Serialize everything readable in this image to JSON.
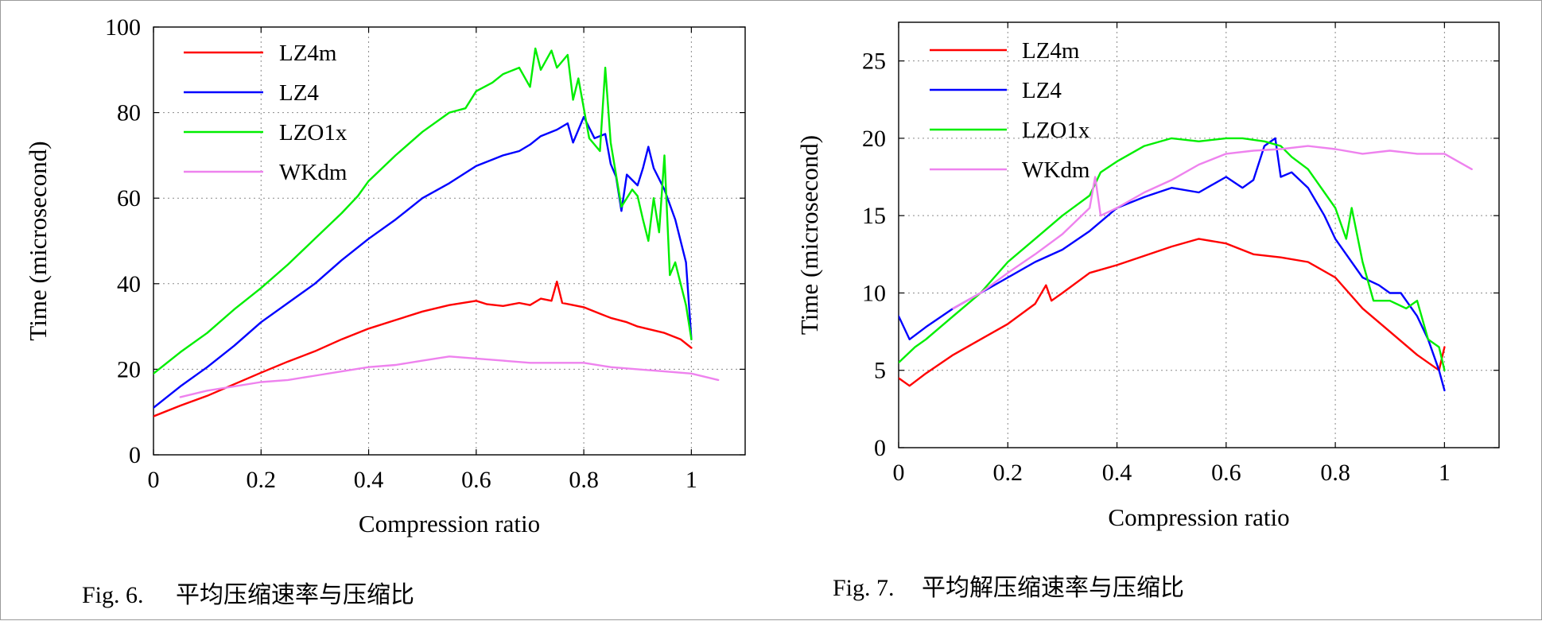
{
  "chart_data": [
    {
      "type": "line",
      "caption_num": "Fig. 6.",
      "caption_text": "平均压缩速率与压缩比",
      "xlabel": "Compression ratio",
      "ylabel": "Time (microsecond)",
      "xlim": [
        0,
        1.1
      ],
      "ylim": [
        0,
        100
      ],
      "xticks": [
        0,
        0.2,
        0.4,
        0.6,
        0.8,
        1
      ],
      "xtick_labels": [
        "0",
        "0.2",
        "0.4",
        "0.6",
        "0.8",
        "1"
      ],
      "yticks": [
        0,
        20,
        40,
        60,
        80,
        100
      ],
      "ytick_labels": [
        "0",
        "20",
        "40",
        "60",
        "80",
        "100"
      ],
      "legend_position": "top-left",
      "series": [
        {
          "name": "LZ4m",
          "color": "#ff0000",
          "points": [
            [
              0,
              9
            ],
            [
              0.05,
              11.5
            ],
            [
              0.1,
              13.8
            ],
            [
              0.15,
              16.5
            ],
            [
              0.2,
              19.2
            ],
            [
              0.25,
              21.8
            ],
            [
              0.3,
              24.2
            ],
            [
              0.35,
              27
            ],
            [
              0.4,
              29.5
            ],
            [
              0.45,
              31.5
            ],
            [
              0.5,
              33.5
            ],
            [
              0.55,
              35
            ],
            [
              0.6,
              36
            ],
            [
              0.62,
              35.2
            ],
            [
              0.65,
              34.8
            ],
            [
              0.68,
              35.5
            ],
            [
              0.7,
              35
            ],
            [
              0.72,
              36.5
            ],
            [
              0.74,
              36
            ],
            [
              0.75,
              40.5
            ],
            [
              0.76,
              35.5
            ],
            [
              0.78,
              35
            ],
            [
              0.8,
              34.5
            ],
            [
              0.83,
              33
            ],
            [
              0.85,
              32
            ],
            [
              0.88,
              31
            ],
            [
              0.9,
              30
            ],
            [
              0.95,
              28.5
            ],
            [
              0.98,
              27
            ],
            [
              1.0,
              25
            ]
          ]
        },
        {
          "name": "LZ4",
          "color": "#0000ff",
          "points": [
            [
              0,
              11
            ],
            [
              0.05,
              16
            ],
            [
              0.1,
              20.5
            ],
            [
              0.15,
              25.5
            ],
            [
              0.2,
              31
            ],
            [
              0.25,
              35.5
            ],
            [
              0.3,
              40
            ],
            [
              0.35,
              45.5
            ],
            [
              0.4,
              50.5
            ],
            [
              0.45,
              55
            ],
            [
              0.5,
              60
            ],
            [
              0.55,
              63.5
            ],
            [
              0.6,
              67.5
            ],
            [
              0.63,
              69
            ],
            [
              0.65,
              70
            ],
            [
              0.68,
              71
            ],
            [
              0.7,
              72.5
            ],
            [
              0.72,
              74.5
            ],
            [
              0.75,
              76
            ],
            [
              0.77,
              77.5
            ],
            [
              0.78,
              73
            ],
            [
              0.8,
              79
            ],
            [
              0.82,
              74
            ],
            [
              0.84,
              75
            ],
            [
              0.85,
              68
            ],
            [
              0.86,
              65
            ],
            [
              0.87,
              57
            ],
            [
              0.88,
              65.5
            ],
            [
              0.9,
              63
            ],
            [
              0.91,
              67
            ],
            [
              0.92,
              72
            ],
            [
              0.93,
              67
            ],
            [
              0.95,
              62
            ],
            [
              0.97,
              55
            ],
            [
              0.99,
              45
            ],
            [
              1.0,
              27
            ]
          ]
        },
        {
          "name": "LZO1x",
          "color": "#00ee00",
          "points": [
            [
              0,
              19
            ],
            [
              0.05,
              24
            ],
            [
              0.1,
              28.5
            ],
            [
              0.15,
              34
            ],
            [
              0.2,
              39
            ],
            [
              0.25,
              44.5
            ],
            [
              0.3,
              50.5
            ],
            [
              0.35,
              56.5
            ],
            [
              0.38,
              60.5
            ],
            [
              0.4,
              64
            ],
            [
              0.45,
              70
            ],
            [
              0.5,
              75.5
            ],
            [
              0.55,
              80
            ],
            [
              0.58,
              81
            ],
            [
              0.6,
              85
            ],
            [
              0.63,
              87
            ],
            [
              0.65,
              89
            ],
            [
              0.68,
              90.5
            ],
            [
              0.7,
              86
            ],
            [
              0.71,
              95
            ],
            [
              0.72,
              90
            ],
            [
              0.74,
              94.5
            ],
            [
              0.75,
              90.5
            ],
            [
              0.77,
              93.5
            ],
            [
              0.78,
              83
            ],
            [
              0.79,
              88
            ],
            [
              0.81,
              74
            ],
            [
              0.83,
              71
            ],
            [
              0.84,
              90.5
            ],
            [
              0.85,
              73
            ],
            [
              0.87,
              58
            ],
            [
              0.89,
              62
            ],
            [
              0.9,
              60.5
            ],
            [
              0.91,
              55
            ],
            [
              0.92,
              50
            ],
            [
              0.93,
              60
            ],
            [
              0.94,
              52
            ],
            [
              0.95,
              70
            ],
            [
              0.96,
              42
            ],
            [
              0.97,
              45
            ],
            [
              0.99,
              35
            ],
            [
              1.0,
              27
            ]
          ]
        },
        {
          "name": "WKdm",
          "color": "#ee82ee",
          "points": [
            [
              0.05,
              13.5
            ],
            [
              0.1,
              15
            ],
            [
              0.15,
              16
            ],
            [
              0.2,
              17
            ],
            [
              0.25,
              17.5
            ],
            [
              0.3,
              18.5
            ],
            [
              0.35,
              19.5
            ],
            [
              0.4,
              20.5
            ],
            [
              0.45,
              21
            ],
            [
              0.5,
              22
            ],
            [
              0.55,
              23
            ],
            [
              0.6,
              22.5
            ],
            [
              0.65,
              22
            ],
            [
              0.7,
              21.5
            ],
            [
              0.75,
              21.5
            ],
            [
              0.8,
              21.5
            ],
            [
              0.85,
              20.5
            ],
            [
              0.9,
              20
            ],
            [
              0.95,
              19.5
            ],
            [
              1.0,
              19
            ],
            [
              1.05,
              17.5
            ]
          ]
        }
      ]
    },
    {
      "type": "line",
      "caption_num": "Fig. 7.",
      "caption_text": "平均解压缩速率与压缩比",
      "xlabel": "Compression ratio",
      "ylabel": "Time (microsecond)",
      "xlim": [
        0,
        1.1
      ],
      "ylim": [
        0,
        27.5
      ],
      "xticks": [
        0,
        0.2,
        0.4,
        0.6,
        0.8,
        1
      ],
      "xtick_labels": [
        "0",
        "0.2",
        "0.4",
        "0.6",
        "0.8",
        "1"
      ],
      "yticks": [
        0,
        5,
        10,
        15,
        20,
        25
      ],
      "ytick_labels": [
        "0",
        "5",
        "10",
        "15",
        "20",
        "25"
      ],
      "legend_position": "top-left",
      "series": [
        {
          "name": "LZ4m",
          "color": "#ff0000",
          "points": [
            [
              0,
              4.5
            ],
            [
              0.02,
              4
            ],
            [
              0.05,
              4.8
            ],
            [
              0.1,
              6
            ],
            [
              0.15,
              7
            ],
            [
              0.2,
              8
            ],
            [
              0.25,
              9.3
            ],
            [
              0.27,
              10.5
            ],
            [
              0.28,
              9.5
            ],
            [
              0.3,
              10
            ],
            [
              0.35,
              11.3
            ],
            [
              0.4,
              11.8
            ],
            [
              0.45,
              12.4
            ],
            [
              0.5,
              13
            ],
            [
              0.55,
              13.5
            ],
            [
              0.6,
              13.2
            ],
            [
              0.65,
              12.5
            ],
            [
              0.7,
              12.3
            ],
            [
              0.75,
              12
            ],
            [
              0.8,
              11
            ],
            [
              0.85,
              9
            ],
            [
              0.9,
              7.5
            ],
            [
              0.95,
              6
            ],
            [
              0.99,
              5
            ],
            [
              1.0,
              6.5
            ]
          ]
        },
        {
          "name": "LZ4",
          "color": "#0000ff",
          "points": [
            [
              0,
              8.5
            ],
            [
              0.02,
              7
            ],
            [
              0.05,
              7.8
            ],
            [
              0.1,
              9
            ],
            [
              0.15,
              10
            ],
            [
              0.2,
              11
            ],
            [
              0.25,
              12
            ],
            [
              0.3,
              12.8
            ],
            [
              0.35,
              14
            ],
            [
              0.4,
              15.5
            ],
            [
              0.45,
              16.2
            ],
            [
              0.5,
              16.8
            ],
            [
              0.55,
              16.5
            ],
            [
              0.6,
              17.5
            ],
            [
              0.63,
              16.8
            ],
            [
              0.65,
              17.3
            ],
            [
              0.67,
              19.5
            ],
            [
              0.69,
              20
            ],
            [
              0.7,
              17.5
            ],
            [
              0.72,
              17.8
            ],
            [
              0.75,
              16.8
            ],
            [
              0.78,
              15
            ],
            [
              0.8,
              13.5
            ],
            [
              0.85,
              11
            ],
            [
              0.88,
              10.5
            ],
            [
              0.9,
              10
            ],
            [
              0.92,
              10
            ],
            [
              0.95,
              8.5
            ],
            [
              0.97,
              7
            ],
            [
              0.99,
              5
            ],
            [
              1.0,
              3.7
            ]
          ]
        },
        {
          "name": "LZO1x",
          "color": "#00ee00",
          "points": [
            [
              0,
              5.5
            ],
            [
              0.03,
              6.5
            ],
            [
              0.05,
              7
            ],
            [
              0.1,
              8.5
            ],
            [
              0.15,
              10
            ],
            [
              0.2,
              12
            ],
            [
              0.25,
              13.5
            ],
            [
              0.3,
              15
            ],
            [
              0.35,
              16.3
            ],
            [
              0.37,
              17.8
            ],
            [
              0.4,
              18.5
            ],
            [
              0.45,
              19.5
            ],
            [
              0.5,
              20
            ],
            [
              0.55,
              19.8
            ],
            [
              0.6,
              20
            ],
            [
              0.63,
              20
            ],
            [
              0.67,
              19.8
            ],
            [
              0.7,
              19.5
            ],
            [
              0.72,
              18.8
            ],
            [
              0.75,
              18
            ],
            [
              0.78,
              16.5
            ],
            [
              0.8,
              15.5
            ],
            [
              0.82,
              13.5
            ],
            [
              0.83,
              15.5
            ],
            [
              0.85,
              12
            ],
            [
              0.87,
              9.5
            ],
            [
              0.9,
              9.5
            ],
            [
              0.93,
              9
            ],
            [
              0.95,
              9.5
            ],
            [
              0.97,
              7
            ],
            [
              0.99,
              6.5
            ],
            [
              1.0,
              5
            ]
          ]
        },
        {
          "name": "WKdm",
          "color": "#ee82ee",
          "points": [
            [
              0.1,
              9
            ],
            [
              0.15,
              10
            ],
            [
              0.2,
              11.3
            ],
            [
              0.25,
              12.5
            ],
            [
              0.3,
              13.8
            ],
            [
              0.35,
              15.5
            ],
            [
              0.36,
              17.5
            ],
            [
              0.37,
              15
            ],
            [
              0.4,
              15.5
            ],
            [
              0.45,
              16.5
            ],
            [
              0.5,
              17.3
            ],
            [
              0.55,
              18.3
            ],
            [
              0.6,
              19
            ],
            [
              0.65,
              19.2
            ],
            [
              0.7,
              19.3
            ],
            [
              0.75,
              19.5
            ],
            [
              0.8,
              19.3
            ],
            [
              0.85,
              19
            ],
            [
              0.9,
              19.2
            ],
            [
              0.95,
              19
            ],
            [
              1.0,
              19
            ],
            [
              1.05,
              18
            ]
          ]
        }
      ]
    }
  ]
}
